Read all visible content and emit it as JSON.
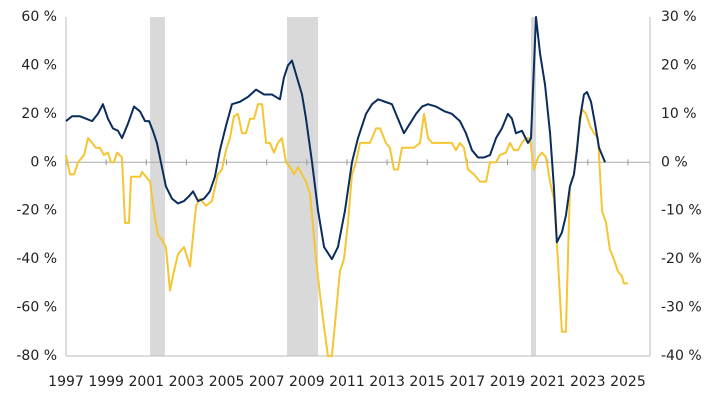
{
  "chart_data": {
    "type": "line",
    "xlim": [
      1997,
      2026.1
    ],
    "xticks": [
      1997,
      1999,
      2001,
      2003,
      2005,
      2007,
      2009,
      2011,
      2013,
      2015,
      2017,
      2019,
      2021,
      2023,
      2025
    ],
    "ylim": [
      -80,
      60
    ],
    "yticks": [
      {
        "value": 60,
        "label": "60 %"
      },
      {
        "value": 40,
        "label": "40 %"
      },
      {
        "value": 20,
        "label": "20 %"
      },
      {
        "value": 0,
        "label": "0 %"
      },
      {
        "value": -20,
        "label": "-20 %"
      },
      {
        "value": -40,
        "label": "-40 %"
      },
      {
        "value": -60,
        "label": "-60 %"
      },
      {
        "value": -80,
        "label": "-80 %"
      }
    ],
    "y2lim": [
      -40,
      30
    ],
    "y2ticks": [
      {
        "value": 30,
        "label": "30 %"
      },
      {
        "value": 20,
        "label": "20 %"
      },
      {
        "value": 10,
        "label": "10 %"
      },
      {
        "value": 0,
        "label": "0 %"
      },
      {
        "value": -10,
        "label": "-10 %"
      },
      {
        "value": -20,
        "label": "-20 %"
      },
      {
        "value": -30,
        "label": "-30 %"
      },
      {
        "value": -40,
        "label": "-40 %"
      }
    ],
    "shaded_regions": [
      [
        2001.19,
        2001.93
      ],
      [
        2008.01,
        2009.56
      ],
      [
        2020.17,
        2020.42
      ]
    ],
    "shade_color": "#d9d9d9",
    "series": [
      {
        "color": "#f5c533",
        "axis": "y",
        "x": [
          1997.0,
          1997.2,
          1997.4,
          1997.6,
          1997.9,
          1998.1,
          1998.3,
          1998.49,
          1998.69,
          1998.89,
          1999.09,
          1999.24,
          1999.39,
          1999.54,
          1999.79,
          1999.94,
          2000.14,
          2000.24,
          2000.49,
          2000.69,
          2000.79,
          2000.99,
          2001.19,
          2001.38,
          2001.58,
          2001.78,
          2001.98,
          2002.18,
          2002.38,
          2002.58,
          2002.88,
          2003.18,
          2003.48,
          2003.68,
          2003.98,
          2004.27,
          2004.57,
          2004.77,
          2004.97,
          2005.17,
          2005.37,
          2005.57,
          2005.77,
          2005.97,
          2006.17,
          2006.37,
          2006.57,
          2006.77,
          2006.97,
          2007.16,
          2007.36,
          2007.56,
          2007.76,
          2007.96,
          2008.16,
          2008.36,
          2008.56,
          2008.76,
          2008.96,
          2009.16,
          2009.46,
          2009.66,
          2009.86,
          2010.05,
          2010.25,
          2010.4,
          2010.65,
          2010.85,
          2011.05,
          2011.25,
          2011.45,
          2011.65,
          2011.85,
          2012.15,
          2012.45,
          2012.65,
          2012.94,
          2013.14,
          2013.34,
          2013.54,
          2013.74,
          2013.94,
          2014.34,
          2014.64,
          2014.84,
          2015.04,
          2015.24,
          2015.44,
          2015.83,
          2016.23,
          2016.43,
          2016.63,
          2016.83,
          2017.03,
          2017.33,
          2017.63,
          2017.93,
          2018.13,
          2018.43,
          2018.62,
          2018.92,
          2019.12,
          2019.32,
          2019.52,
          2019.72,
          2019.92,
          2020.12,
          2020.32,
          2020.52,
          2020.72,
          2020.92,
          2021.12,
          2021.31,
          2021.51,
          2021.71,
          2021.91,
          2022.11,
          2022.31,
          2022.51,
          2022.71,
          2022.91,
          2023.11,
          2023.31,
          2023.51,
          2023.71,
          2023.91,
          2024.1,
          2024.3,
          2024.5,
          2024.7,
          2024.8,
          2025.0
        ],
        "values": [
          3,
          -5,
          -5,
          0,
          3,
          10,
          8,
          6,
          6,
          3,
          4,
          0,
          0,
          4,
          2,
          -25,
          -25,
          -6,
          -6,
          -6,
          -4,
          -6,
          -8,
          -20,
          -30,
          -32,
          -35,
          -53,
          -45,
          -38,
          -35,
          -43,
          -18,
          -15,
          -18,
          -16,
          -5,
          -3,
          5,
          10,
          19,
          20,
          12,
          12,
          18,
          18,
          24,
          24,
          8,
          8,
          4,
          8,
          10,
          0,
          -2,
          -5,
          -2,
          -5,
          -8,
          -13,
          -40,
          -55,
          -68,
          -80,
          -80,
          -67,
          -45,
          -40,
          -25,
          -5,
          0,
          8,
          8,
          8,
          14,
          14,
          8,
          6,
          -3,
          -3,
          6,
          6,
          6,
          8,
          20,
          10,
          8,
          8,
          8,
          8,
          5,
          8,
          6,
          -3,
          -5,
          -8,
          -8,
          0,
          0,
          3,
          4,
          8,
          5,
          5,
          8,
          10,
          10,
          -3,
          2,
          4,
          2,
          -8,
          -15,
          -40,
          -70,
          -70,
          -10,
          -5,
          10,
          22,
          20,
          15,
          12,
          10,
          -20,
          -25,
          -36,
          -40,
          -45,
          -47,
          -50,
          -50
        ]
      },
      {
        "color": "#0a2d5e",
        "axis": "y2",
        "x": [
          1997.0,
          1997.3,
          1997.7,
          1998.0,
          1998.3,
          1998.59,
          1998.84,
          1999.09,
          1999.34,
          1999.59,
          1999.79,
          2000.09,
          2000.39,
          2000.69,
          2000.94,
          2001.14,
          2001.33,
          2001.53,
          2001.73,
          2001.98,
          2002.28,
          2002.58,
          2002.88,
          2003.13,
          2003.33,
          2003.58,
          2003.88,
          2004.17,
          2004.42,
          2004.67,
          2004.97,
          2005.27,
          2005.67,
          2006.07,
          2006.47,
          2006.87,
          2007.26,
          2007.66,
          2007.86,
          2008.06,
          2008.26,
          2008.51,
          2008.76,
          2008.96,
          2009.26,
          2009.56,
          2009.86,
          2010.25,
          2010.55,
          2010.9,
          2011.25,
          2011.55,
          2011.95,
          2012.25,
          2012.55,
          2012.89,
          2013.24,
          2013.54,
          2013.84,
          2014.14,
          2014.44,
          2014.74,
          2015.04,
          2015.44,
          2015.88,
          2016.23,
          2016.63,
          2016.93,
          2017.23,
          2017.53,
          2017.83,
          2018.13,
          2018.43,
          2018.72,
          2019.02,
          2019.22,
          2019.42,
          2019.72,
          2020.02,
          2020.17,
          2020.32,
          2020.42,
          2020.62,
          2020.87,
          2021.12,
          2021.31,
          2021.46,
          2021.71,
          2021.91,
          2022.11,
          2022.31,
          2022.46,
          2022.61,
          2022.81,
          2022.96,
          2023.16,
          2023.36,
          2023.56,
          2023.86
        ],
        "values": [
          8.5,
          9.5,
          9.5,
          9,
          8.5,
          10,
          12,
          9,
          7,
          6.5,
          5,
          8,
          11.5,
          10.5,
          8.5,
          8.5,
          6.5,
          4,
          0,
          -5,
          -7.5,
          -8.5,
          -8,
          -7,
          -6,
          -8,
          -7.5,
          -6,
          -3,
          2.5,
          7.5,
          12,
          12.5,
          13.5,
          15,
          14,
          14,
          13,
          17.5,
          20,
          21,
          17.5,
          14,
          9,
          0,
          -10,
          -17.5,
          -20,
          -17.5,
          -10,
          0,
          5,
          10,
          12,
          13,
          12.5,
          12,
          9,
          6,
          8,
          10,
          11.5,
          12,
          11.5,
          10.5,
          10,
          8.5,
          6,
          2.5,
          1,
          1,
          1.5,
          5,
          7,
          10,
          9,
          6,
          6.5,
          4,
          5,
          20,
          30,
          22.5,
          16,
          6,
          -5,
          -16.5,
          -14.5,
          -11,
          -5,
          -2.5,
          2.5,
          9,
          14,
          14.5,
          12.5,
          8,
          3,
          0
        ]
      }
    ]
  }
}
